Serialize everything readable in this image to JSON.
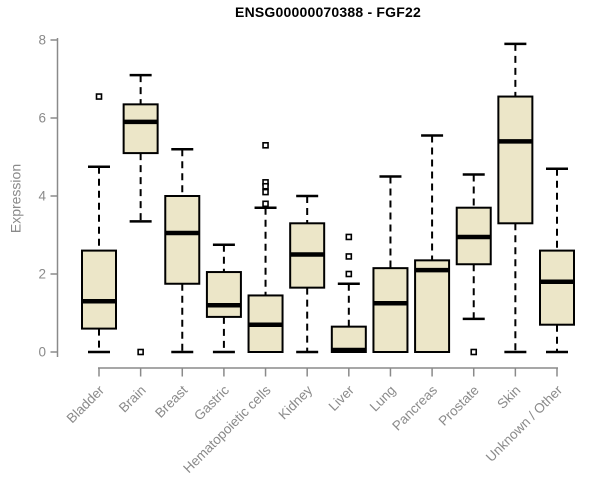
{
  "chart_data": {
    "type": "boxplot",
    "title": "ENSG00000070388 - FGF22",
    "ylabel": "Expression",
    "xlabel": "",
    "ylim": [
      0,
      8
    ],
    "yticks": [
      0,
      2,
      4,
      6,
      8
    ],
    "grid": false,
    "legend": "none",
    "categories": [
      "Bladder",
      "Brain",
      "Breast",
      "Gastric",
      "Hematopoietic cells",
      "Kidney",
      "Liver",
      "Lung",
      "Pancreas",
      "Prostate",
      "Skin",
      "Unknown / Other"
    ],
    "series": [
      {
        "name": "Bladder",
        "whisker_low": 0.0,
        "q1": 0.6,
        "median": 1.3,
        "q3": 2.6,
        "whisker_high": 4.75,
        "outliers": [
          6.55
        ]
      },
      {
        "name": "Brain",
        "whisker_low": 3.35,
        "q1": 5.1,
        "median": 5.9,
        "q3": 6.35,
        "whisker_high": 7.1,
        "outliers": [
          0.0
        ]
      },
      {
        "name": "Breast",
        "whisker_low": 0.0,
        "q1": 1.75,
        "median": 3.05,
        "q3": 4.0,
        "whisker_high": 5.2,
        "outliers": []
      },
      {
        "name": "Gastric",
        "whisker_low": 0.0,
        "q1": 0.9,
        "median": 1.2,
        "q3": 2.05,
        "whisker_high": 2.75,
        "outliers": []
      },
      {
        "name": "Hematopoietic cells",
        "whisker_low": 0.0,
        "q1": 0.0,
        "median": 0.7,
        "q3": 1.45,
        "whisker_high": 3.7,
        "outliers": [
          5.3,
          4.35,
          4.25,
          4.1,
          3.8
        ]
      },
      {
        "name": "Kidney",
        "whisker_low": 0.0,
        "q1": 1.65,
        "median": 2.5,
        "q3": 3.3,
        "whisker_high": 4.0,
        "outliers": []
      },
      {
        "name": "Liver",
        "whisker_low": 0.0,
        "q1": 0.0,
        "median": 0.05,
        "q3": 0.65,
        "whisker_high": 1.75,
        "outliers": [
          2.95,
          2.45,
          2.0
        ]
      },
      {
        "name": "Lung",
        "whisker_low": 0.0,
        "q1": 0.0,
        "median": 1.25,
        "q3": 2.15,
        "whisker_high": 4.5,
        "outliers": []
      },
      {
        "name": "Pancreas",
        "whisker_low": 0.0,
        "q1": 0.0,
        "median": 2.1,
        "q3": 2.35,
        "whisker_high": 5.55,
        "outliers": []
      },
      {
        "name": "Prostate",
        "whisker_low": 0.85,
        "q1": 2.25,
        "median": 2.95,
        "q3": 3.7,
        "whisker_high": 4.55,
        "outliers": [
          0.0
        ]
      },
      {
        "name": "Skin",
        "whisker_low": 0.0,
        "q1": 3.3,
        "median": 5.4,
        "q3": 6.55,
        "whisker_high": 7.9,
        "outliers": []
      },
      {
        "name": "Unknown / Other",
        "whisker_low": 0.0,
        "q1": 0.7,
        "median": 1.8,
        "q3": 2.6,
        "whisker_high": 4.7,
        "outliers": []
      }
    ],
    "colors": {
      "box_fill": "#ece6c8",
      "box_border": "#000000",
      "median": "#000000",
      "whisker": "#000000",
      "outlier_fill": "#ffffff",
      "outlier_border": "#000000",
      "axis": "#8a8a8a",
      "tick_label": "#8a8a8a",
      "title": "#000000",
      "background": "#ffffff"
    }
  }
}
